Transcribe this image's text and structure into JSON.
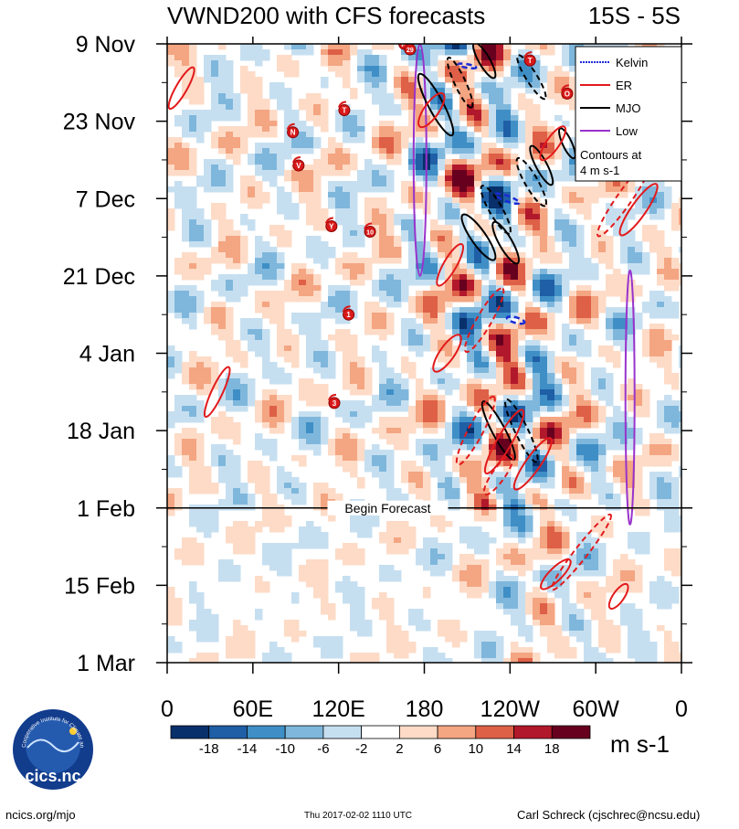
{
  "chart_data": {
    "type": "heatmap",
    "title": "VWND200 with CFS forecasts",
    "region": "15S - 5S",
    "x_axis": {
      "ticks": [
        "0",
        "60E",
        "120E",
        "180",
        "120W",
        "60W",
        "0"
      ],
      "range_deg": [
        0,
        360
      ]
    },
    "y_axis": {
      "ticks": [
        "9 Nov",
        "23 Nov",
        "7 Dec",
        "21 Dec",
        "4 Jan",
        "18 Jan",
        "1 Feb",
        "15 Feb",
        "1 Mar"
      ],
      "range_days": [
        0,
        112
      ]
    },
    "forecast_line": {
      "label": "Begin Forecast",
      "day": 84
    },
    "units": "m s-1",
    "colorbar": {
      "labels": [
        "-18",
        "-14",
        "-10",
        "-6",
        "-2",
        "2",
        "6",
        "10",
        "14",
        "18"
      ],
      "colors": [
        "#08306b",
        "#1f5fa6",
        "#3f8fc6",
        "#7fb7dc",
        "#c6dff0",
        "#ffffff",
        "#fddbc7",
        "#f4a582",
        "#de6047",
        "#b2182b",
        "#67001f"
      ]
    },
    "legend": [
      {
        "name": "Kelvin",
        "color": "#1a2bd6",
        "dash": true
      },
      {
        "name": "ER",
        "color": "#e31a1c",
        "dash": false
      },
      {
        "name": "MJO",
        "color": "#000000",
        "dash": false
      },
      {
        "name": "Low",
        "color": "#9933cc",
        "dash": false
      }
    ],
    "contour_note": [
      "Contours at",
      "4 m s-1"
    ],
    "storms": [
      {
        "label": "M",
        "lon": 166,
        "day": 0
      },
      {
        "label": "29",
        "lon": 170,
        "day": 1
      },
      {
        "label": "T",
        "lon": 254,
        "day": 3
      },
      {
        "label": "O",
        "lon": 280,
        "day": 9
      },
      {
        "label": "T",
        "lon": 124,
        "day": 12
      },
      {
        "label": "N",
        "lon": 88,
        "day": 16
      },
      {
        "label": "V",
        "lon": 92,
        "day": 22
      },
      {
        "label": "Y",
        "lon": 115,
        "day": 33
      },
      {
        "label": "10",
        "lon": 142,
        "day": 34
      },
      {
        "label": "1",
        "lon": 127,
        "day": 49
      },
      {
        "label": "3",
        "lon": 117,
        "day": 65
      }
    ],
    "ellipses": [
      {
        "type": "MJO",
        "lon": 188,
        "day": 11,
        "rx": 38,
        "ry": 8,
        "rot": 62,
        "dash": false
      },
      {
        "type": "MJO",
        "lon": 205,
        "day": 7,
        "rx": 30,
        "ry": 6,
        "rot": 65,
        "dash": true
      },
      {
        "type": "MJO",
        "lon": 222,
        "day": 3,
        "rx": 22,
        "ry": 6,
        "rot": 60,
        "dash": false
      },
      {
        "type": "MJO",
        "lon": 255,
        "day": 6,
        "rx": 28,
        "ry": 6,
        "rot": 58,
        "dash": true
      },
      {
        "type": "MJO",
        "lon": 262,
        "day": 22,
        "rx": 24,
        "ry": 6,
        "rot": 62,
        "dash": false
      },
      {
        "type": "MJO",
        "lon": 255,
        "day": 25,
        "rx": 30,
        "ry": 7,
        "rot": 60,
        "dash": true
      },
      {
        "type": "MJO",
        "lon": 230,
        "day": 30,
        "rx": 30,
        "ry": 7,
        "rot": 60,
        "dash": true
      },
      {
        "type": "MJO",
        "lon": 218,
        "day": 35,
        "rx": 30,
        "ry": 8,
        "rot": 55,
        "dash": false
      },
      {
        "type": "MJO",
        "lon": 237,
        "day": 36,
        "rx": 26,
        "ry": 7,
        "rot": 60,
        "dash": false
      },
      {
        "type": "MJO",
        "lon": 232,
        "day": 70,
        "rx": 36,
        "ry": 7,
        "rot": 62,
        "dash": false
      },
      {
        "type": "MJO",
        "lon": 248,
        "day": 70,
        "rx": 38,
        "ry": 7,
        "rot": 64,
        "dash": true
      },
      {
        "type": "MJO",
        "lon": 280,
        "day": 18,
        "rx": 18,
        "ry": 5,
        "rot": 65,
        "dash": false
      },
      {
        "type": "Kelvin",
        "lon": 238,
        "day": 28,
        "rx": 14,
        "ry": 3,
        "rot": 20,
        "dash": true
      },
      {
        "type": "Kelvin",
        "lon": 244,
        "day": 50,
        "rx": 10,
        "ry": 3,
        "rot": 15,
        "dash": true
      },
      {
        "type": "Kelvin",
        "lon": 210,
        "day": 4,
        "rx": 10,
        "ry": 2,
        "rot": 10,
        "dash": true
      },
      {
        "type": "ER",
        "lon": 185,
        "day": 12,
        "rx": 22,
        "ry": 8,
        "rot": -55,
        "dash": false
      },
      {
        "type": "ER",
        "lon": 270,
        "day": 18,
        "rx": 22,
        "ry": 7,
        "rot": -55,
        "dash": false
      },
      {
        "type": "ER",
        "lon": 330,
        "day": 30,
        "rx": 34,
        "ry": 8,
        "rot": -55,
        "dash": false
      },
      {
        "type": "ER",
        "lon": 320,
        "day": 28,
        "rx": 50,
        "ry": 8,
        "rot": -55,
        "dash": true
      },
      {
        "type": "ER",
        "lon": 198,
        "day": 40,
        "rx": 26,
        "ry": 7,
        "rot": -60,
        "dash": false
      },
      {
        "type": "ER",
        "lon": 222,
        "day": 50,
        "rx": 40,
        "ry": 8,
        "rot": -60,
        "dash": true
      },
      {
        "type": "ER",
        "lon": 196,
        "day": 56,
        "rx": 24,
        "ry": 8,
        "rot": -55,
        "dash": false
      },
      {
        "type": "ER",
        "lon": 216,
        "day": 70,
        "rx": 42,
        "ry": 8,
        "rot": -62,
        "dash": true
      },
      {
        "type": "ER",
        "lon": 236,
        "day": 72,
        "rx": 40,
        "ry": 8,
        "rot": -60,
        "dash": false
      },
      {
        "type": "ER",
        "lon": 256,
        "day": 76,
        "rx": 34,
        "ry": 8,
        "rot": -55,
        "dash": false
      },
      {
        "type": "ER",
        "lon": 232,
        "day": 78,
        "rx": 26,
        "ry": 7,
        "rot": -55,
        "dash": true
      },
      {
        "type": "ER",
        "lon": 35,
        "day": 63,
        "rx": 30,
        "ry": 6,
        "rot": -65,
        "dash": false
      },
      {
        "type": "ER",
        "lon": 10,
        "day": 8,
        "rx": 26,
        "ry": 6,
        "rot": -60,
        "dash": false
      },
      {
        "type": "ER",
        "lon": 272,
        "day": 96,
        "rx": 22,
        "ry": 7,
        "rot": -45,
        "dash": false
      },
      {
        "type": "ER",
        "lon": 290,
        "day": 92,
        "rx": 52,
        "ry": 7,
        "rot": -52,
        "dash": true
      },
      {
        "type": "ER",
        "lon": 316,
        "day": 100,
        "rx": 16,
        "ry": 6,
        "rot": -55,
        "dash": false
      }
    ],
    "low_contours": [
      {
        "lon": 177,
        "day0": 0,
        "day1": 42,
        "width": 7
      },
      {
        "lon": 324,
        "day0": 41,
        "day1": 87,
        "width": 5
      }
    ]
  },
  "footer": {
    "left": "ncics.org/mjo",
    "middle": "Thu 2017-02-02 1110 UTC",
    "right": "Carl Schreck (cjschrec@ncsu.edu)"
  },
  "logo": {
    "text": "cics.nc",
    "ring_text": "Cooperative Institute for Climate and Satellites"
  }
}
